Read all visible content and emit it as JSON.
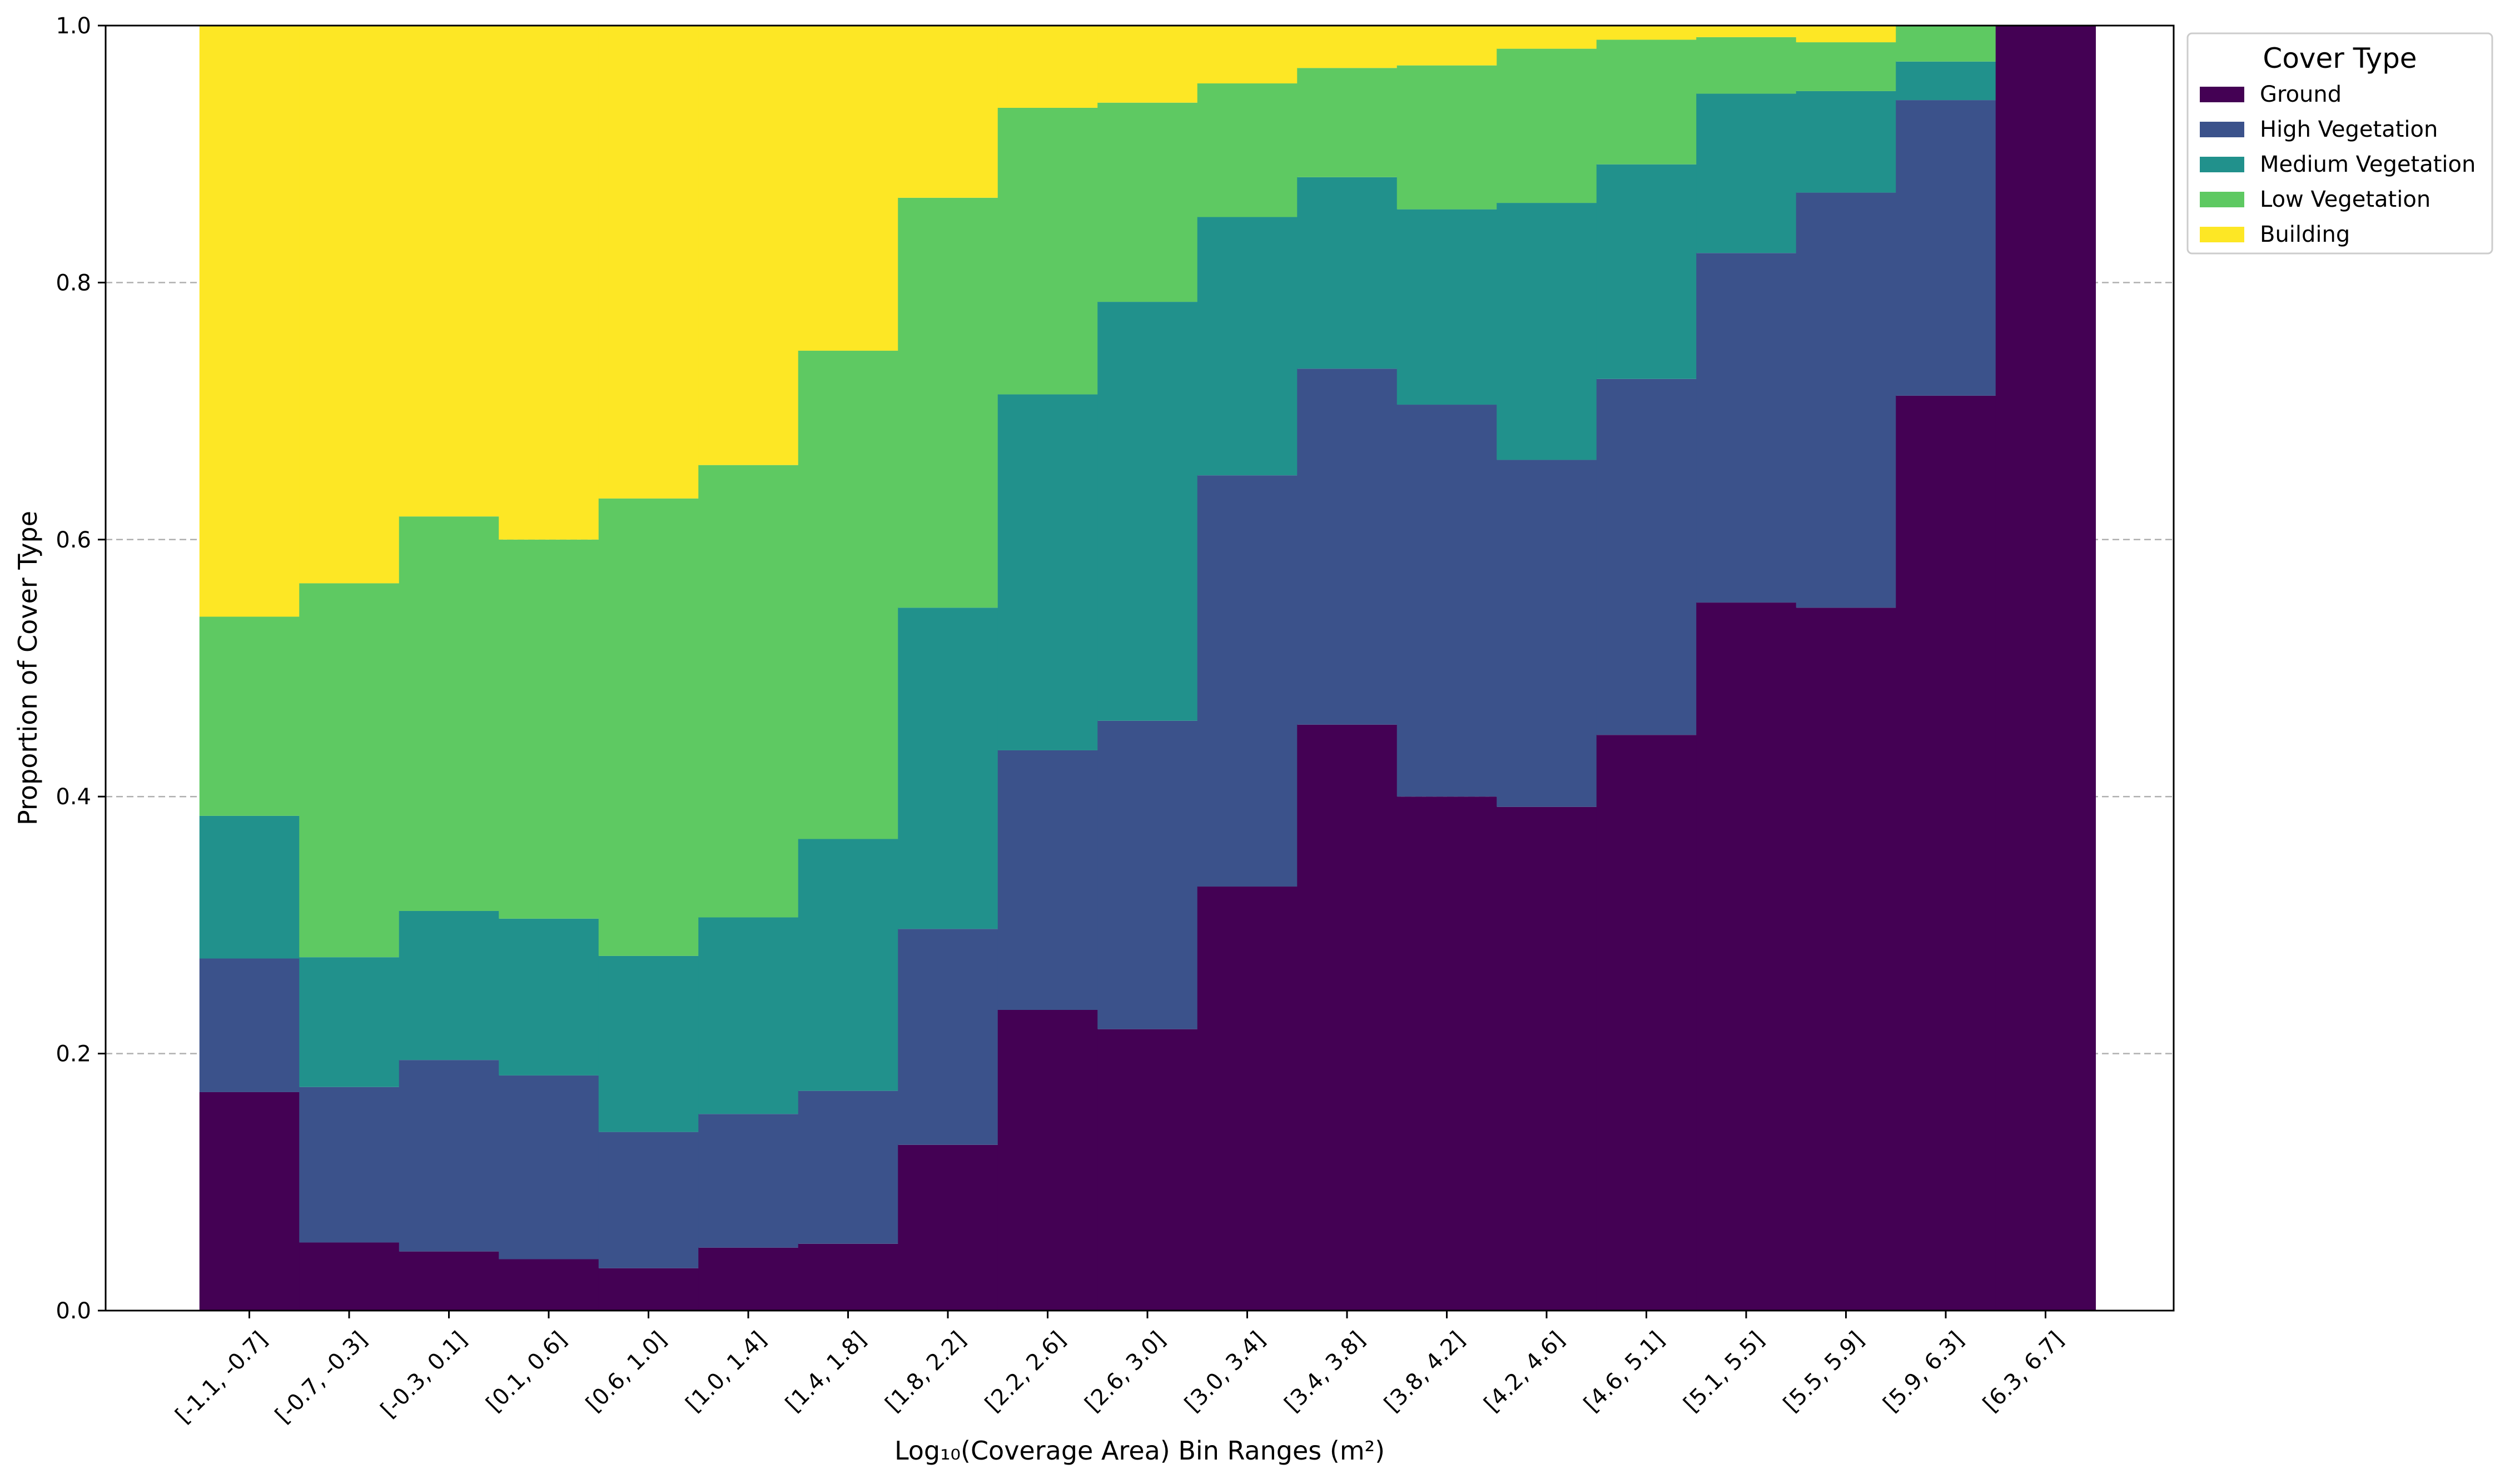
{
  "chart_data": {
    "type": "bar",
    "stacked": true,
    "normalized": true,
    "xlabel": "Log₁₀(Coverage Area) Bin Ranges (m²)",
    "ylabel": "Proportion of Cover Type",
    "ylim": [
      0,
      1.0
    ],
    "yticks": [
      "0.0",
      "0.2",
      "0.4",
      "0.6",
      "0.8",
      "1.0"
    ],
    "grid": "y-dashed",
    "legend": {
      "title": "Cover Type",
      "placement": "outside-top-right"
    },
    "categories": [
      "[-1.1, -0.7]",
      "[-0.7, -0.3]",
      "[-0.3, 0.1]",
      "[0.1, 0.6]",
      "[0.6, 1.0]",
      "[1.0, 1.4]",
      "[1.4, 1.8]",
      "[1.8, 2.2]",
      "[2.2, 2.6]",
      "[2.6, 3.0]",
      "[3.0, 3.4]",
      "[3.4, 3.8]",
      "[3.8, 4.2]",
      "[4.2, 4.6]",
      "[4.6, 5.1]",
      "[5.1, 5.5]",
      "[5.5, 5.9]",
      "[5.9, 6.3]",
      "[6.3, 6.7]"
    ],
    "series": [
      {
        "name": "Ground",
        "color": "#440154",
        "values": [
          0.17,
          0.053,
          0.046,
          0.04,
          0.033,
          0.049,
          0.052,
          0.129,
          0.234,
          0.219,
          0.33,
          0.456,
          0.4,
          0.392,
          0.448,
          0.551,
          0.547,
          0.712,
          1.0
        ]
      },
      {
        "name": "High Vegetation",
        "color": "#3b528b",
        "values": [
          0.104,
          0.121,
          0.149,
          0.143,
          0.106,
          0.104,
          0.119,
          0.168,
          0.202,
          0.24,
          0.32,
          0.277,
          0.305,
          0.27,
          0.277,
          0.272,
          0.323,
          0.23,
          0.0
        ]
      },
      {
        "name": "Medium Vegetation",
        "color": "#21918c",
        "values": [
          0.111,
          0.101,
          0.116,
          0.122,
          0.137,
          0.153,
          0.196,
          0.25,
          0.277,
          0.326,
          0.201,
          0.149,
          0.152,
          0.2,
          0.167,
          0.124,
          0.079,
          0.03,
          0.0
        ]
      },
      {
        "name": "Low Vegetation",
        "color": "#5ec962",
        "values": [
          0.155,
          0.291,
          0.307,
          0.295,
          0.356,
          0.352,
          0.38,
          0.319,
          0.223,
          0.155,
          0.104,
          0.085,
          0.112,
          0.12,
          0.097,
          0.044,
          0.038,
          0.028,
          0.0
        ]
      },
      {
        "name": "Building",
        "color": "#fde725",
        "values": [
          0.46,
          0.434,
          0.382,
          0.4,
          0.368,
          0.342,
          0.253,
          0.134,
          0.064,
          0.06,
          0.045,
          0.033,
          0.031,
          0.018,
          0.011,
          0.009,
          0.013,
          0.0,
          0.0
        ]
      }
    ]
  }
}
